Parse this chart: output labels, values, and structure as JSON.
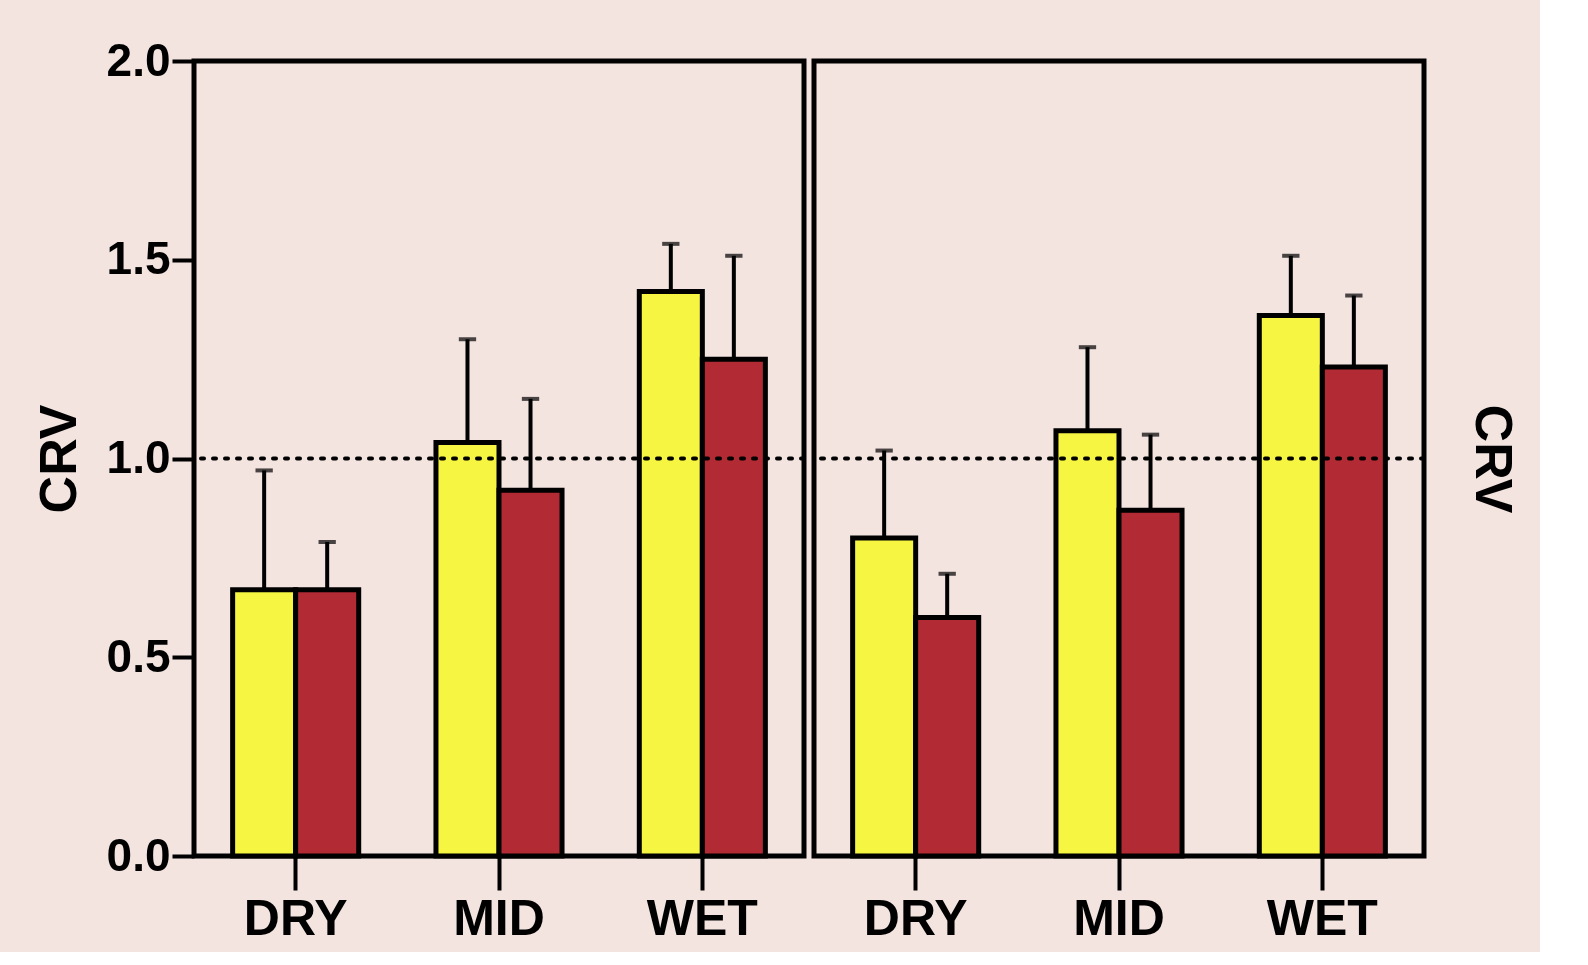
{
  "chart_data": [
    {
      "type": "bar",
      "ylabel": "CRV",
      "categories": [
        "DRY",
        "MID",
        "WET"
      ],
      "series": [
        {
          "color": "#f5f542",
          "values": [
            0.67,
            1.04,
            1.42
          ],
          "errors": [
            [
              0.67,
              0.97
            ],
            [
              1.04,
              1.3
            ],
            [
              1.42,
              1.54
            ]
          ]
        },
        {
          "color": "#b22a33",
          "values": [
            0.67,
            0.92,
            1.25
          ],
          "errors": [
            [
              0.67,
              0.79
            ],
            [
              0.92,
              1.15
            ],
            [
              1.25,
              1.51
            ]
          ]
        }
      ],
      "ylim": [
        0,
        2
      ],
      "yticks": [
        {
          "value": 0,
          "label": "0.0"
        },
        {
          "value": 0.5,
          "label": "0.5"
        },
        {
          "value": 1,
          "label": "1.0"
        },
        {
          "value": 1.5,
          "label": "1.5"
        },
        {
          "value": 2,
          "label": "2.0"
        }
      ],
      "ref_lines": [
        {
          "axis": "y",
          "value": 1,
          "line_style": "dotted",
          "color": "#000000"
        }
      ],
      "grid": false,
      "legend": false
    },
    {
      "type": "bar",
      "ylabel": "CRV",
      "categories": [
        "DRY",
        "MID",
        "WET"
      ],
      "series": [
        {
          "color": "#f5f542",
          "values": [
            0.8,
            1.07,
            1.36
          ],
          "errors": [
            [
              0.8,
              1.02
            ],
            [
              1.07,
              1.28
            ],
            [
              1.36,
              1.51
            ]
          ]
        },
        {
          "color": "#b22a33",
          "values": [
            0.6,
            0.87,
            1.23
          ],
          "errors": [
            [
              0.6,
              0.71
            ],
            [
              0.87,
              1.06
            ],
            [
              1.23,
              1.41
            ]
          ]
        }
      ],
      "ylim": [
        0,
        2
      ],
      "tick_labels": "x",
      "ref_lines": [
        {
          "axis": "y",
          "value": 1,
          "line_style": "dotted",
          "color": "#000000"
        }
      ],
      "grid": false,
      "legend": false
    }
  ]
}
